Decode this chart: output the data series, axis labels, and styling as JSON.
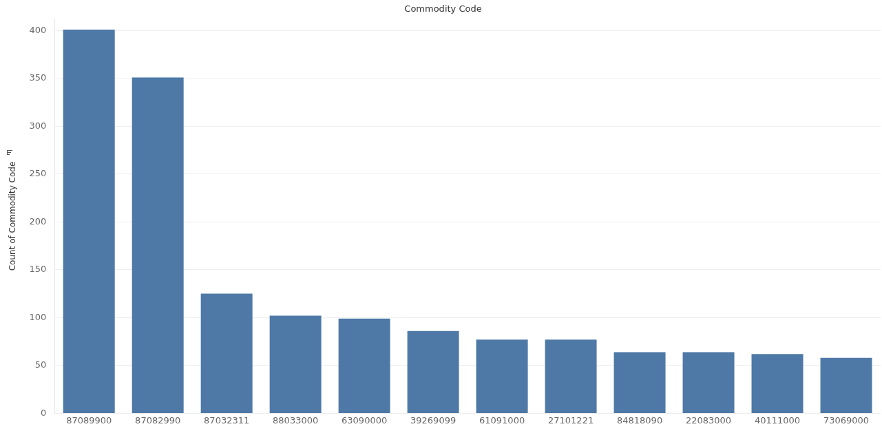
{
  "chart_data": {
    "type": "bar",
    "title": "Commodity Code",
    "ylabel": "Count of Commodity Code",
    "categories": [
      "87089900",
      "87082990",
      "87032311",
      "88033000",
      "63090000",
      "39269099",
      "61091000",
      "27101221",
      "84818090",
      "22083000",
      "40111000",
      "73069000"
    ],
    "values": [
      401,
      351,
      125,
      102,
      99,
      86,
      77,
      77,
      64,
      64,
      62,
      58
    ],
    "color": "#4e79a7",
    "ylim": [
      0,
      412
    ],
    "yticks": [
      0,
      50,
      100,
      150,
      200,
      250,
      300,
      350,
      400
    ],
    "grid": "y",
    "legend": false
  }
}
